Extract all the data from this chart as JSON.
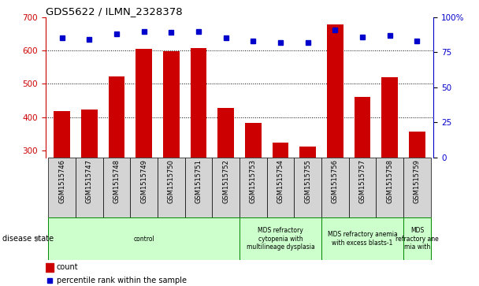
{
  "title": "GDS5622 / ILMN_2328378",
  "samples": [
    "GSM1515746",
    "GSM1515747",
    "GSM1515748",
    "GSM1515749",
    "GSM1515750",
    "GSM1515751",
    "GSM1515752",
    "GSM1515753",
    "GSM1515754",
    "GSM1515755",
    "GSM1515756",
    "GSM1515757",
    "GSM1515758",
    "GSM1515759"
  ],
  "counts": [
    418,
    424,
    522,
    604,
    597,
    607,
    428,
    384,
    323,
    313,
    678,
    462,
    521,
    358
  ],
  "percentiles": [
    85,
    84,
    88,
    90,
    89,
    90,
    85,
    83,
    82,
    82,
    91,
    86,
    87,
    83
  ],
  "ylim_left": [
    280,
    700
  ],
  "ylim_right": [
    0,
    100
  ],
  "yticks_left": [
    300,
    400,
    500,
    600,
    700
  ],
  "yticks_right": [
    0,
    25,
    50,
    75,
    100
  ],
  "bar_color": "#cc0000",
  "dot_color": "#0000cc",
  "bg_color": "#ffffff",
  "axis_color_left": "#cc0000",
  "axis_color_right": "#0000cc",
  "grid_yticks": [
    400,
    500,
    600
  ],
  "disease_groups": [
    {
      "label": "control",
      "start": 0,
      "end": 7,
      "color": "#ccffcc"
    },
    {
      "label": "MDS refractory\ncytopenia with\nmultilineage dysplasia",
      "start": 7,
      "end": 10,
      "color": "#ccffcc"
    },
    {
      "label": "MDS refractory anemia\nwith excess blasts-1",
      "start": 10,
      "end": 13,
      "color": "#ccffcc"
    },
    {
      "label": "MDS\nrefractory ane\nmia with",
      "start": 13,
      "end": 14,
      "color": "#ccffcc"
    }
  ],
  "sample_bg_color": "#d4d4d4",
  "legend_count_label": "count",
  "legend_percentile_label": "percentile rank within the sample",
  "disease_state_label": "disease state"
}
